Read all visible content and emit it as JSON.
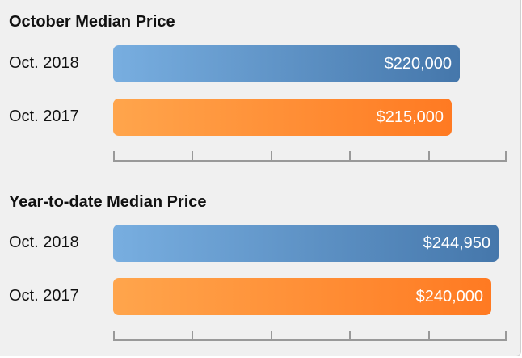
{
  "chart_data": [
    {
      "type": "bar",
      "orientation": "horizontal",
      "title": "October Median Price",
      "categories": [
        "Oct. 2018",
        "Oct. 2017"
      ],
      "values": [
        220000,
        215000
      ],
      "value_labels": [
        "$220,000",
        "$215,000"
      ],
      "colors": [
        "#5a8fc6",
        "#ff8f34"
      ],
      "xlim": [
        0,
        250000
      ],
      "xticks": 5,
      "grid": false
    },
    {
      "type": "bar",
      "orientation": "horizontal",
      "title": "Year-to-date Median Price",
      "categories": [
        "Oct. 2018",
        "Oct. 2017"
      ],
      "values": [
        244950,
        240000
      ],
      "value_labels": [
        "$244,950",
        "$240,000"
      ],
      "colors": [
        "#5a8fc6",
        "#ff8f34"
      ],
      "xlim": [
        0,
        250000
      ],
      "xticks": 5,
      "grid": false
    }
  ]
}
